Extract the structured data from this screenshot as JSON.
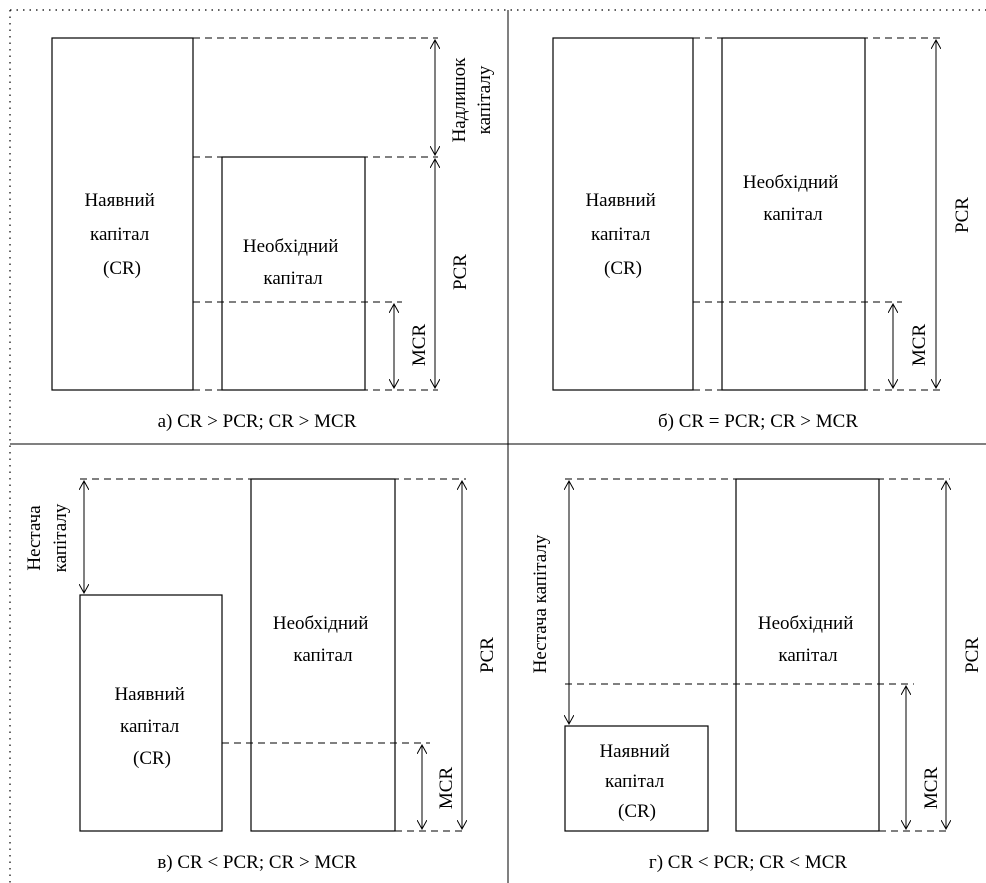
{
  "panels": {
    "a": {
      "caption": "а) CR > PCR; CR > MCR",
      "available": [
        "Наявний",
        "капітал",
        "(CR)"
      ],
      "required": [
        "Необхідний",
        "капітал"
      ],
      "gap_label": [
        "Надлишок",
        "капіталу"
      ],
      "pcr_label": "PCR",
      "mcr_label": "MCR"
    },
    "b": {
      "caption": "б) CR = PCR; CR > MCR",
      "available": [
        "Наявний",
        "капітал",
        "(CR)"
      ],
      "required": [
        "Необхідний",
        "капітал"
      ],
      "pcr_label": "PCR",
      "mcr_label": "MCR"
    },
    "c": {
      "caption": "в) CR < PCR; CR > MCR",
      "available": [
        "Наявний",
        "капітал",
        "(CR)"
      ],
      "required": [
        "Необхідний",
        "капітал"
      ],
      "gap_label": [
        "Нестача",
        "капіталу"
      ],
      "pcr_label": "PCR",
      "mcr_label": "MCR"
    },
    "d": {
      "caption": "г) CR < PCR; CR < MCR",
      "available": [
        "Наявний",
        "капітал",
        "(CR)"
      ],
      "required": [
        "Необхідний",
        "капітал"
      ],
      "gap_label": "Нестача капіталу",
      "pcr_label": "PCR",
      "mcr_label": "MCR"
    }
  }
}
